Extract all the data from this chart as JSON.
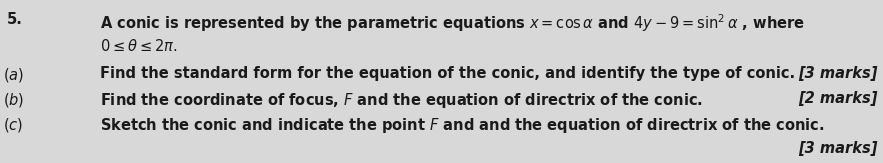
{
  "background_color": "#d8d8d8",
  "fig_width": 8.83,
  "fig_height": 1.63,
  "dpi": 100,
  "number": "5.",
  "line1": "A conic is represented by the parametric equations $x = \\cos\\alpha$ and $4y-9=\\sin^2\\alpha$ , where",
  "line2": "$0 \\leq \\theta \\leq 2\\pi.$",
  "part_a_label": "$(a)$",
  "part_a_text": "Find the standard form for the equation of the conic, and identify the type of conic.",
  "part_a_marks": "[3 marks]",
  "part_b_label": "$(b)$",
  "part_b_text": "Find the coordinate of focus, $F$ and the equation of directrix of the conic.",
  "part_b_marks": "[2 marks]",
  "part_c_label": "$(c)$",
  "part_c_text": "Sketch the conic and indicate the point $F$ and and the equation of directrix of the conic.",
  "part_c_marks": "[3 marks]",
  "text_color": "#1a1a1a",
  "font_size": 10.5
}
